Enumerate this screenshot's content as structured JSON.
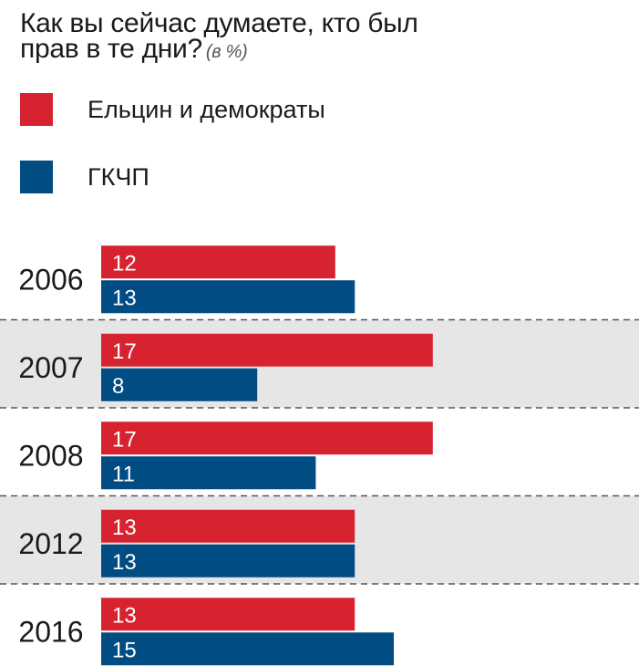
{
  "chart_data": {
    "type": "bar",
    "orientation": "horizontal",
    "title_line1": "Как вы сейчас думаете, кто был",
    "title_line2": "прав в те дни?",
    "unit": "(в %)",
    "categories": [
      "2006",
      "2007",
      "2008",
      "2012",
      "2016"
    ],
    "series": [
      {
        "name": "Ельцин и демократы",
        "color": "#d7232f",
        "values": [
          12,
          17,
          17,
          13,
          13
        ]
      },
      {
        "name": "ГКЧП",
        "color": "#014c83",
        "values": [
          13,
          8,
          11,
          13,
          15
        ]
      }
    ],
    "shaded_rows": [
      false,
      true,
      false,
      true,
      false
    ],
    "row_shade_color": "#e6e6e6",
    "legend_position": "top-left",
    "grid": false
  }
}
